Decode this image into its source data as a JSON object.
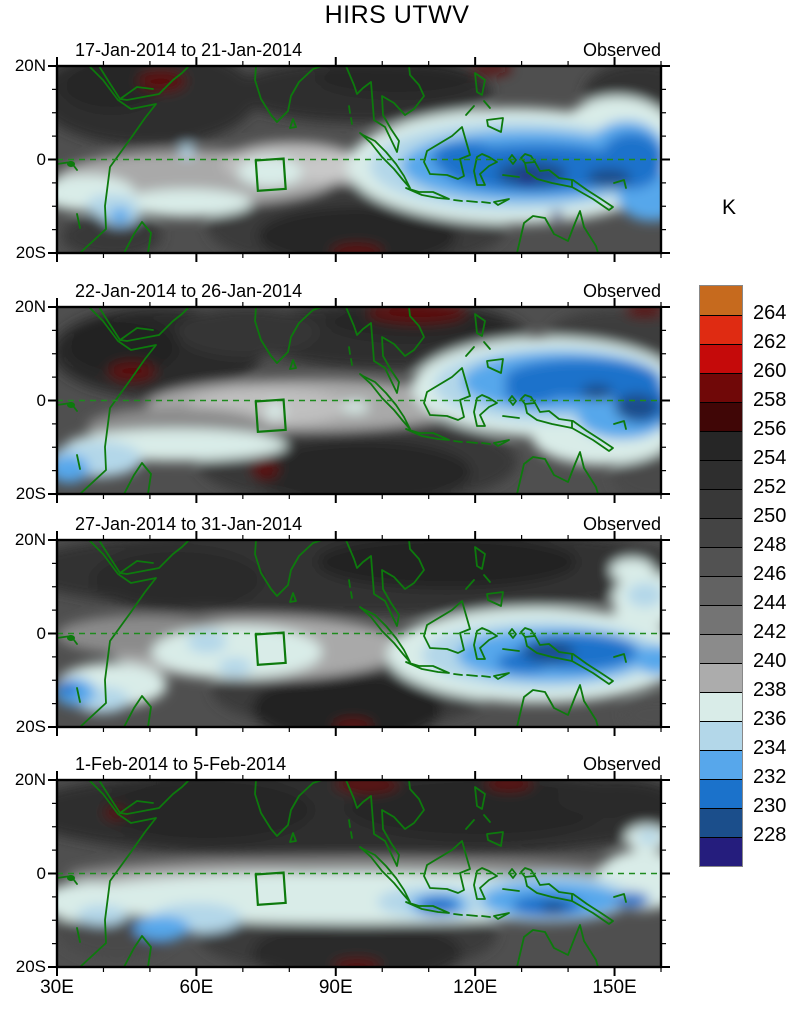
{
  "title": "HIRS UTWV",
  "colorbar": {
    "unit": "K",
    "tick_labels": [
      "264",
      "262",
      "260",
      "258",
      "256",
      "254",
      "252",
      "250",
      "248",
      "246",
      "244",
      "242",
      "240",
      "238",
      "236",
      "234",
      "232",
      "230",
      "228"
    ],
    "segment_colors_top_to_bottom": [
      "#C66A1E",
      "#DF2B12",
      "#C50A0A",
      "#700808",
      "#400606",
      "#262626",
      "#2E2E2E",
      "#383838",
      "#444444",
      "#525252",
      "#626262",
      "#747474",
      "#8B8B8B",
      "#ACACAC",
      "#D9ECE8",
      "#B3D7E9",
      "#57A7EB",
      "#1B72CB",
      "#1B4E8B",
      "#251D7D"
    ]
  },
  "axes": {
    "x_tick_labels": [
      "30E",
      "60E",
      "90E",
      "120E",
      "150E"
    ],
    "x_major_deg": [
      30,
      60,
      90,
      120,
      150
    ],
    "x_minor_step_deg": 10,
    "x_range_deg": [
      30,
      160
    ],
    "y_tick_labels": [
      "20N",
      "0",
      "20S"
    ],
    "y_major_deg": [
      20,
      0,
      -20
    ],
    "y_minor_step_deg": 5,
    "y_range_deg": [
      -20,
      20
    ]
  },
  "map_colors": {
    "coastline_green": "#0D7A0D",
    "equator_dash_green": "#1E8B1E",
    "background_gray": "#4F4F4F",
    "axis_black": "#000000"
  },
  "chart_data": {
    "type": "heatmap",
    "quantity": "HIRS upper tropospheric water vapor brightness temperature",
    "unit": "K",
    "value_levels": [
      228,
      230,
      232,
      234,
      236,
      238,
      240,
      242,
      244,
      246,
      248,
      250,
      252,
      254,
      256,
      258,
      260,
      262,
      264
    ],
    "lon_range_deg_east": [
      30,
      160
    ],
    "lat_range_deg_north": [
      -20,
      20
    ],
    "study_box_lon": [
      73,
      79
    ],
    "study_box_lat": [
      -6.5,
      0
    ],
    "panels": [
      {
        "date_range": "17-Jan-2014 to 21-Jan-2014",
        "source": "Observed",
        "description": "Dry (warm, dark/red) air over Arabia-Horn of Africa and north India; moist (cold, blue) convective region over the Maritime Continent 95E-160E around the equator with coldest cores near 115-135E; warm spot near 43E 18N and at the south-central bottom edge.",
        "regions": [
          [
            300,
            160,
            150,
            45,
            "#3A3A3A"
          ],
          [
            90,
            30,
            110,
            50,
            "#2E2E2E"
          ],
          [
            55,
            20,
            50,
            25,
            "#262626"
          ],
          [
            305,
            25,
            130,
            32,
            "#2E2E2E"
          ],
          [
            340,
            12,
            80,
            18,
            "#262626"
          ],
          [
            582,
            28,
            55,
            32,
            "#303030"
          ],
          [
            300,
            170,
            100,
            30,
            "#262626"
          ],
          [
            55,
            170,
            50,
            22,
            "#383838"
          ],
          [
            140,
            112,
            140,
            28,
            "#A9A9A9"
          ],
          [
            235,
            98,
            70,
            22,
            "#BDBDBD"
          ],
          [
            300,
            103,
            60,
            14,
            "#C9C9C9"
          ],
          [
            30,
            127,
            48,
            18,
            "#D9ECE8"
          ],
          [
            130,
            137,
            65,
            14,
            "#D9ECE8"
          ],
          [
            213,
            106,
            32,
            15,
            "#D9ECE8"
          ],
          [
            63,
            148,
            20,
            12,
            "#B3D7E9"
          ],
          [
            55,
            140,
            26,
            12,
            "#B3D7E9"
          ],
          [
            63,
            150,
            10,
            8,
            "#57A7EB"
          ],
          [
            130,
            85,
            8,
            7,
            "#B3D7E9"
          ],
          [
            455,
            100,
            165,
            58,
            "#D9ECE8"
          ],
          [
            560,
            75,
            60,
            45,
            "#D9ECE8"
          ],
          [
            458,
            100,
            145,
            45,
            "#B3D7E9"
          ],
          [
            470,
            100,
            125,
            35,
            "#57A7EB"
          ],
          [
            570,
            90,
            40,
            35,
            "#57A7EB"
          ],
          [
            595,
            130,
            35,
            25,
            "#57A7EB"
          ],
          [
            480,
            102,
            95,
            24,
            "#1B72CB"
          ],
          [
            575,
            95,
            32,
            28,
            "#1B72CB"
          ],
          [
            410,
            92,
            35,
            16,
            "#1B72CB"
          ],
          [
            475,
            108,
            35,
            13,
            "#1B4E8B"
          ],
          [
            552,
            112,
            22,
            10,
            "#1B4E8B"
          ],
          [
            470,
            112,
            7,
            6,
            "#251D7D"
          ],
          [
            500,
            150,
            6,
            5,
            "#251D7D"
          ],
          [
            105,
            15,
            24,
            11,
            "#5A0707"
          ],
          [
            435,
            3,
            20,
            6,
            "#5A0707"
          ],
          [
            300,
            186,
            26,
            8,
            "#5A0707"
          ]
        ]
      },
      {
        "date_range": "22-Jan-2014 to 26-Jan-2014",
        "source": "Observed",
        "description": "Very dry air over the Horn of Africa (warm spot near 44E 8N) and along 20N near 105-125E; moist blue region shifted east over 105E-160E straddling the equator; pale moist band 30-70E south of the equator; warm spot near 75E 15S.",
        "regions": [
          [
            300,
            155,
            160,
            45,
            "#383838"
          ],
          [
            305,
            165,
            110,
            32,
            "#262626"
          ],
          [
            100,
            45,
            105,
            45,
            "#2A2A2A"
          ],
          [
            65,
            40,
            55,
            28,
            "#222222"
          ],
          [
            330,
            28,
            140,
            34,
            "#2E2E2E"
          ],
          [
            360,
            15,
            90,
            18,
            "#262626"
          ],
          [
            190,
            25,
            70,
            25,
            "#343434"
          ],
          [
            560,
            30,
            70,
            28,
            "#3E3E3E"
          ],
          [
            600,
            170,
            45,
            25,
            "#4A4A4A"
          ],
          [
            250,
            98,
            160,
            26,
            "#A9A9A9"
          ],
          [
            210,
            100,
            80,
            18,
            "#C0C0C0"
          ],
          [
            120,
            120,
            90,
            20,
            "#8B8B8B"
          ],
          [
            120,
            138,
            110,
            16,
            "#D9ECE8"
          ],
          [
            40,
            152,
            45,
            18,
            "#B3D7E9"
          ],
          [
            12,
            162,
            20,
            14,
            "#57A7EB"
          ],
          [
            218,
            104,
            10,
            8,
            "#D9ECE8"
          ],
          [
            298,
            100,
            14,
            6,
            "#D9ECE8"
          ],
          [
            490,
            80,
            135,
            50,
            "#D9ECE8"
          ],
          [
            545,
            130,
            70,
            28,
            "#D9ECE8"
          ],
          [
            495,
            78,
            118,
            38,
            "#B3D7E9"
          ],
          [
            505,
            75,
            100,
            30,
            "#57A7EB"
          ],
          [
            565,
            110,
            45,
            22,
            "#57A7EB"
          ],
          [
            525,
            72,
            78,
            20,
            "#1B72CB"
          ],
          [
            585,
            95,
            28,
            22,
            "#1B72CB"
          ],
          [
            475,
            85,
            28,
            12,
            "#1B72CB"
          ],
          [
            580,
            100,
            22,
            14,
            "#1B4E8B"
          ],
          [
            540,
            85,
            16,
            8,
            "#1B4E8B"
          ],
          [
            75,
            65,
            24,
            10,
            "#5A0707"
          ],
          [
            360,
            6,
            50,
            11,
            "#5A0707"
          ],
          [
            588,
            4,
            20,
            7,
            "#5A0707"
          ],
          [
            208,
            162,
            14,
            10,
            "#5A0707"
          ]
        ]
      },
      {
        "date_range": "27-Jan-2014 to 31-Jan-2014",
        "source": "Observed",
        "description": "Dark dry band along 10-20N across the whole sector; moist pale-blue patch near the 73-79E study box south of the equator; main blue convective region 105E-160E south of the equator with cold core near New Guinea; warm spot at bottom edge near 92E 20S.",
        "regions": [
          [
            300,
            30,
            340,
            45,
            "#303030"
          ],
          [
            390,
            22,
            130,
            26,
            "#242424"
          ],
          [
            120,
            40,
            85,
            32,
            "#2A2A2A"
          ],
          [
            295,
            150,
            140,
            40,
            "#3A3A3A"
          ],
          [
            290,
            168,
            95,
            35,
            "#242424"
          ],
          [
            600,
            175,
            35,
            18,
            "#4F4F4F"
          ],
          [
            200,
            108,
            150,
            32,
            "#A9A9A9"
          ],
          [
            90,
            95,
            90,
            20,
            "#8B8B8B"
          ],
          [
            180,
            112,
            85,
            26,
            "#D9ECE8"
          ],
          [
            150,
            102,
            20,
            11,
            "#B3D7E9"
          ],
          [
            178,
            127,
            17,
            9,
            "#B3D7E9"
          ],
          [
            55,
            145,
            55,
            22,
            "#D9ECE8"
          ],
          [
            45,
            160,
            28,
            13,
            "#B3D7E9"
          ],
          [
            18,
            152,
            20,
            14,
            "#57A7EB"
          ],
          [
            10,
            148,
            10,
            8,
            "#1B72CB"
          ],
          [
            480,
            115,
            150,
            48,
            "#D9ECE8"
          ],
          [
            590,
            60,
            35,
            28,
            "#D9ECE8"
          ],
          [
            575,
            30,
            22,
            12,
            "#D9ECE8"
          ],
          [
            485,
            115,
            120,
            34,
            "#B3D7E9"
          ],
          [
            588,
            55,
            18,
            12,
            "#B3D7E9"
          ],
          [
            495,
            115,
            95,
            26,
            "#57A7EB"
          ],
          [
            600,
            120,
            20,
            15,
            "#57A7EB"
          ],
          [
            520,
            112,
            60,
            18,
            "#1B72CB"
          ],
          [
            468,
            122,
            28,
            11,
            "#1B72CB"
          ],
          [
            492,
            112,
            26,
            11,
            "#1B4E8B"
          ],
          [
            296,
            186,
            20,
            7,
            "#5A0707"
          ]
        ]
      },
      {
        "date_range": "1-Feb-2014 to 5-Feb-2014",
        "source": "Observed",
        "description": "Dry dark band along the north with warm spots at the top edge near 95E and 125E 20N and near 42E 13N; broad pale moist band just south of the equator from 35E to 160E with blue cores near 52E 12S, 106E 7S, 130-140E 7S; dry dark pocket 75-100E 12-20S with warm spot at the bottom edge.",
        "regions": [
          [
            300,
            32,
            340,
            48,
            "#2E2E2E"
          ],
          [
            150,
            30,
            105,
            32,
            "#262626"
          ],
          [
            420,
            28,
            130,
            30,
            "#262626"
          ],
          [
            560,
            18,
            60,
            20,
            "#2A2A2A"
          ],
          [
            290,
            155,
            150,
            40,
            "#3A3A3A"
          ],
          [
            300,
            172,
            105,
            32,
            "#2A2A2A"
          ],
          [
            60,
            150,
            60,
            30,
            "#4A4A4A"
          ],
          [
            300,
            95,
            290,
            18,
            "#8B8B8B"
          ],
          [
            160,
            105,
            120,
            18,
            "#A9A9A9"
          ],
          [
            300,
            118,
            290,
            26,
            "#D9ECE8"
          ],
          [
            30,
            122,
            45,
            20,
            "#D9ECE8"
          ],
          [
            585,
            100,
            45,
            30,
            "#D9ECE8"
          ],
          [
            140,
            138,
            45,
            15,
            "#B3D7E9"
          ],
          [
            45,
            135,
            25,
            10,
            "#B3D7E9"
          ],
          [
            105,
            148,
            28,
            12,
            "#57A7EB"
          ],
          [
            375,
            122,
            55,
            16,
            "#B3D7E9"
          ],
          [
            385,
            124,
            32,
            11,
            "#57A7EB"
          ],
          [
            490,
            118,
            85,
            24,
            "#B3D7E9"
          ],
          [
            495,
            120,
            70,
            18,
            "#57A7EB"
          ],
          [
            381,
            126,
            20,
            9,
            "#1B72CB"
          ],
          [
            490,
            126,
            35,
            11,
            "#1B72CB"
          ],
          [
            575,
            120,
            18,
            8,
            "#1B72CB"
          ],
          [
            497,
            128,
            13,
            6,
            "#1B4E8B"
          ],
          [
            590,
            58,
            22,
            13,
            "#D9ECE8"
          ],
          [
            592,
            57,
            11,
            7,
            "#B3D7E9"
          ],
          [
            310,
            4,
            32,
            9,
            "#5A0707"
          ],
          [
            452,
            3,
            24,
            8,
            "#5A0707"
          ],
          [
            58,
            33,
            11,
            6,
            "#5A0707"
          ],
          [
            300,
            186,
            24,
            7,
            "#5A0707"
          ]
        ]
      }
    ]
  }
}
